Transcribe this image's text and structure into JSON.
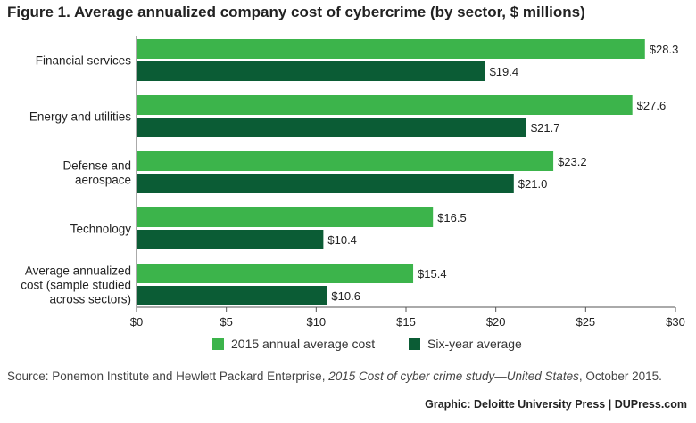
{
  "chart_data": {
    "type": "bar",
    "orientation": "horizontal",
    "title": "Figure 1. Average annualized company cost of cybercrime (by sector, $ millions)",
    "categories": [
      [
        "Financial services"
      ],
      [
        "Energy and utilities"
      ],
      [
        "Defense and",
        "aerospace"
      ],
      [
        "Technology"
      ],
      [
        "Average annualized",
        "cost (sample studied",
        "across sectors)"
      ]
    ],
    "series": [
      {
        "name": "2015 annual average cost",
        "color": "#3cb44b",
        "values": [
          28.3,
          27.6,
          23.2,
          16.5,
          15.4
        ],
        "labels": [
          "$28.3",
          "$27.6",
          "$23.2",
          "$16.5",
          "$15.4"
        ]
      },
      {
        "name": "Six-year average",
        "color": "#0b5c35",
        "values": [
          19.4,
          21.7,
          21.0,
          10.4,
          10.6
        ],
        "labels": [
          "$19.4",
          "$21.7",
          "$21.0",
          "$10.4",
          "$10.6"
        ]
      }
    ],
    "xlim": [
      0,
      30
    ],
    "xticks": [
      0,
      5,
      10,
      15,
      20,
      25,
      30
    ],
    "xtick_labels": [
      "$0",
      "$5",
      "$10",
      "$15",
      "$20",
      "$25",
      "$30"
    ],
    "grid": false,
    "legend": "bottom-center"
  },
  "source": {
    "prefix": "Source: Ponemon Institute and Hewlett Packard Enterprise, ",
    "italic": "2015 Cost of cyber crime study—United States",
    "suffix": ", October 2015."
  },
  "credit": "Graphic: Deloitte University Press  |  DUPress.com"
}
